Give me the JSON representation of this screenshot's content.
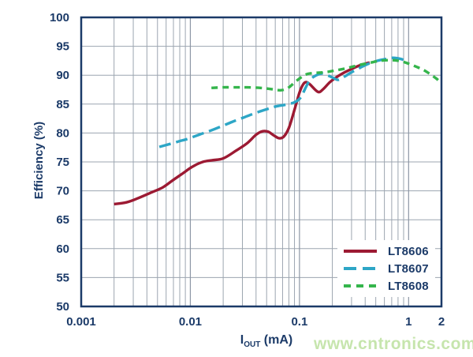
{
  "watermark": "www.cntronics.com",
  "colors": {
    "text": "#1b3a68",
    "frame": "#1b3a68",
    "grid_major": "#8c96a4",
    "grid_minor": "#9ca5b0",
    "background": "#ffffff",
    "watermark": "#c6e5ad"
  },
  "chart_data": {
    "type": "line",
    "title": "",
    "xlabel_base": "I",
    "xlabel_sub": "OUT",
    "xlabel_unit": "(mA)",
    "ylabel": "Efficiency (%)",
    "x_scale": "log",
    "xlim": [
      0.001,
      2
    ],
    "ylim": [
      50,
      100
    ],
    "grid": true,
    "legend_position": "inside-bottom-right",
    "y_ticks": [
      50,
      55,
      60,
      65,
      70,
      75,
      80,
      85,
      90,
      95,
      100
    ],
    "x_ticks": [
      {
        "value": 0.001,
        "label": "0.001"
      },
      {
        "value": 0.01,
        "label": "0.01"
      },
      {
        "value": 0.1,
        "label": "0.1"
      },
      {
        "value": 1,
        "label": "1"
      },
      {
        "value": 2,
        "label": "2"
      }
    ],
    "x_major_gridlines": [
      0.01,
      0.1,
      1
    ],
    "series": [
      {
        "name": "LT8606",
        "color": "#9c1a33",
        "dash": "solid",
        "points": [
          [
            0.002,
            67.7
          ],
          [
            0.0026,
            68.0
          ],
          [
            0.0033,
            68.7
          ],
          [
            0.0045,
            69.8
          ],
          [
            0.0056,
            70.6
          ],
          [
            0.007,
            71.9
          ],
          [
            0.0085,
            73.0
          ],
          [
            0.0105,
            74.2
          ],
          [
            0.013,
            75.0
          ],
          [
            0.016,
            75.3
          ],
          [
            0.02,
            75.6
          ],
          [
            0.026,
            76.9
          ],
          [
            0.033,
            78.2
          ],
          [
            0.04,
            79.7
          ],
          [
            0.046,
            80.3
          ],
          [
            0.052,
            80.2
          ],
          [
            0.058,
            79.6
          ],
          [
            0.065,
            79.1
          ],
          [
            0.072,
            79.4
          ],
          [
            0.08,
            80.9
          ],
          [
            0.09,
            84.0
          ],
          [
            0.1,
            87.0
          ],
          [
            0.108,
            88.4
          ],
          [
            0.115,
            88.8
          ],
          [
            0.125,
            88.4
          ],
          [
            0.148,
            87.1
          ],
          [
            0.165,
            87.6
          ],
          [
            0.19,
            88.8
          ],
          [
            0.22,
            89.7
          ],
          [
            0.26,
            90.5
          ],
          [
            0.31,
            91.2
          ],
          [
            0.37,
            91.8
          ],
          [
            0.44,
            92.2
          ]
        ]
      },
      {
        "name": "LT8607",
        "color": "#2da6c6",
        "dash": "long-dash",
        "points": [
          [
            0.0052,
            77.6
          ],
          [
            0.0065,
            78.1
          ],
          [
            0.008,
            78.6
          ],
          [
            0.0095,
            79.0
          ],
          [
            0.012,
            79.7
          ],
          [
            0.0148,
            80.3
          ],
          [
            0.019,
            81.1
          ],
          [
            0.024,
            81.9
          ],
          [
            0.031,
            82.7
          ],
          [
            0.04,
            83.5
          ],
          [
            0.05,
            84.1
          ],
          [
            0.061,
            84.6
          ],
          [
            0.075,
            84.9
          ],
          [
            0.09,
            85.3
          ],
          [
            0.1,
            85.9
          ],
          [
            0.107,
            86.8
          ],
          [
            0.115,
            88.0
          ],
          [
            0.125,
            89.2
          ],
          [
            0.14,
            89.9
          ],
          [
            0.16,
            90.3
          ],
          [
            0.18,
            90.0
          ],
          [
            0.2,
            89.6
          ],
          [
            0.225,
            89.2
          ],
          [
            0.25,
            89.6
          ],
          [
            0.3,
            90.5
          ],
          [
            0.36,
            91.3
          ],
          [
            0.43,
            92.0
          ],
          [
            0.52,
            92.5
          ],
          [
            0.62,
            92.8
          ],
          [
            0.72,
            93.0
          ],
          [
            0.85,
            92.8
          ],
          [
            0.95,
            92.4
          ]
        ]
      },
      {
        "name": "LT8608",
        "color": "#35b54c",
        "dash": "short-dash",
        "points": [
          [
            0.0156,
            87.8
          ],
          [
            0.02,
            87.9
          ],
          [
            0.026,
            87.9
          ],
          [
            0.033,
            87.9
          ],
          [
            0.044,
            87.8
          ],
          [
            0.055,
            87.6
          ],
          [
            0.068,
            87.4
          ],
          [
            0.08,
            87.9
          ],
          [
            0.092,
            88.9
          ],
          [
            0.105,
            89.7
          ],
          [
            0.118,
            90.2
          ],
          [
            0.14,
            90.4
          ],
          [
            0.17,
            90.5
          ],
          [
            0.21,
            90.8
          ],
          [
            0.27,
            91.2
          ],
          [
            0.34,
            91.7
          ],
          [
            0.43,
            92.1
          ],
          [
            0.55,
            92.5
          ],
          [
            0.7,
            92.6
          ],
          [
            0.85,
            92.4
          ],
          [
            1.0,
            92.0
          ],
          [
            1.2,
            91.4
          ],
          [
            1.4,
            90.8
          ],
          [
            1.6,
            90.1
          ],
          [
            1.8,
            89.4
          ],
          [
            1.9,
            89.0
          ]
        ]
      }
    ]
  }
}
